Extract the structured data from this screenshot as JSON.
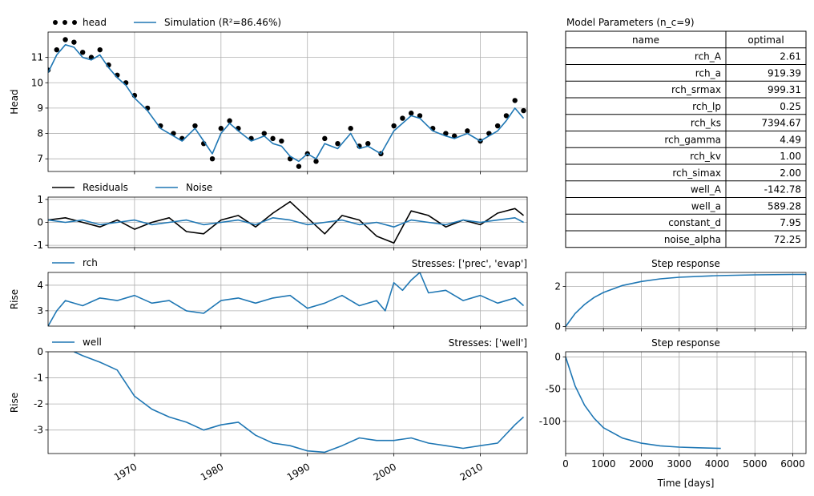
{
  "time_labels": [
    "1970",
    "1980",
    "1990",
    "2000",
    "2010"
  ],
  "chart_data": [
    {
      "type": "line",
      "id": "head_panel",
      "ylabel": "Head",
      "ylim": [
        6.5,
        12.0
      ],
      "xlim": [
        "1960-01-01",
        "2015-06-01"
      ],
      "yticks": [
        7,
        8,
        9,
        10,
        11
      ],
      "grid": true,
      "legend": [
        {
          "label": "head",
          "style": "dots",
          "color": "#000000"
        },
        {
          "label": "Simulation (R²=86.46%)",
          "style": "line",
          "color": "#1f77b4"
        }
      ],
      "series": [
        {
          "name": "head",
          "style": "dots",
          "color": "#000000",
          "x": [
            1960.0,
            1961.0,
            1962.0,
            1963.0,
            1964.0,
            1965.0,
            1966.0,
            1967.0,
            1968.0,
            1969.0,
            1970.0,
            1971.5,
            1973.0,
            1974.5,
            1975.5,
            1977.0,
            1978.0,
            1979.0,
            1980.0,
            1981.0,
            1982.0,
            1983.5,
            1985.0,
            1986.0,
            1987.0,
            1988.0,
            1989.0,
            1990.0,
            1991.0,
            1992.0,
            1993.5,
            1995.0,
            1996.0,
            1997.0,
            1998.5,
            2000.0,
            2001.0,
            2002.0,
            2003.0,
            2004.5,
            2006.0,
            2007.0,
            2008.5,
            2010.0,
            2011.0,
            2012.0,
            2013.0,
            2014.0,
            2015.0
          ],
          "y": [
            10.5,
            11.3,
            11.7,
            11.6,
            11.2,
            11.0,
            11.3,
            10.7,
            10.3,
            10.0,
            9.5,
            9.0,
            8.3,
            8.0,
            7.8,
            8.3,
            7.6,
            7.0,
            8.2,
            8.5,
            8.2,
            7.8,
            8.0,
            7.8,
            7.7,
            7.0,
            6.7,
            7.2,
            6.9,
            7.8,
            7.6,
            8.2,
            7.5,
            7.6,
            7.2,
            8.3,
            8.6,
            8.8,
            8.7,
            8.2,
            8.0,
            7.9,
            8.1,
            7.7,
            8.0,
            8.3,
            8.7,
            9.3,
            8.9
          ]
        },
        {
          "name": "Simulation (R²=86.46%)",
          "style": "line",
          "color": "#1f77b4",
          "x": [
            1960.0,
            1961.0,
            1962.0,
            1963.0,
            1964.0,
            1965.0,
            1966.0,
            1967.0,
            1968.0,
            1969.0,
            1970.0,
            1971.5,
            1973.0,
            1974.5,
            1975.5,
            1977.0,
            1978.0,
            1979.0,
            1980.0,
            1981.0,
            1982.0,
            1983.5,
            1985.0,
            1986.0,
            1987.0,
            1988.0,
            1989.0,
            1990.0,
            1991.0,
            1992.0,
            1993.5,
            1995.0,
            1996.0,
            1997.0,
            1998.5,
            2000.0,
            2001.0,
            2002.0,
            2003.0,
            2004.5,
            2006.0,
            2007.0,
            2008.5,
            2010.0,
            2011.0,
            2012.0,
            2013.0,
            2014.0,
            2015.0
          ],
          "y": [
            10.4,
            11.1,
            11.5,
            11.4,
            11.0,
            10.9,
            11.1,
            10.6,
            10.2,
            9.9,
            9.4,
            8.9,
            8.2,
            7.9,
            7.7,
            8.2,
            7.7,
            7.2,
            8.0,
            8.4,
            8.1,
            7.7,
            7.9,
            7.6,
            7.5,
            7.1,
            6.9,
            7.2,
            7.0,
            7.6,
            7.4,
            8.0,
            7.4,
            7.5,
            7.2,
            8.1,
            8.4,
            8.7,
            8.6,
            8.1,
            7.9,
            7.8,
            8.0,
            7.7,
            7.9,
            8.1,
            8.5,
            9.0,
            8.6
          ]
        }
      ]
    },
    {
      "type": "line",
      "id": "residuals_panel",
      "ylim": [
        -1.1,
        1.1
      ],
      "yticks": [
        -1,
        0,
        1
      ],
      "grid": true,
      "legend": [
        {
          "label": "Residuals",
          "color": "#000000"
        },
        {
          "label": "Noise",
          "color": "#1f77b4"
        }
      ],
      "series": [
        {
          "name": "Residuals",
          "color": "#000000",
          "x": [
            1960,
            1962,
            1964,
            1966,
            1968,
            1970,
            1972,
            1974,
            1976,
            1978,
            1980,
            1982,
            1984,
            1986,
            1988,
            1990,
            1992,
            1994,
            1996,
            1998,
            2000,
            2002,
            2004,
            2006,
            2008,
            2010,
            2012,
            2014,
            2015
          ],
          "y": [
            0.1,
            0.2,
            0.0,
            -0.2,
            0.1,
            -0.3,
            0.0,
            0.2,
            -0.4,
            -0.5,
            0.1,
            0.3,
            -0.2,
            0.4,
            0.9,
            0.2,
            -0.5,
            0.3,
            0.1,
            -0.6,
            -0.9,
            0.5,
            0.3,
            -0.2,
            0.1,
            -0.1,
            0.4,
            0.6,
            0.3
          ]
        },
        {
          "name": "Noise",
          "color": "#1f77b4",
          "x": [
            1960,
            1962,
            1964,
            1966,
            1968,
            1970,
            1972,
            1974,
            1976,
            1978,
            1980,
            1982,
            1984,
            1986,
            1988,
            1990,
            1992,
            1994,
            1996,
            1998,
            2000,
            2002,
            2004,
            2006,
            2008,
            2010,
            2012,
            2014,
            2015
          ],
          "y": [
            0.1,
            0.0,
            0.1,
            -0.1,
            0.0,
            0.1,
            -0.1,
            0.0,
            0.1,
            -0.1,
            0.0,
            0.1,
            -0.1,
            0.2,
            0.1,
            -0.1,
            0.0,
            0.1,
            -0.1,
            0.0,
            -0.2,
            0.1,
            0.0,
            -0.1,
            0.1,
            0.0,
            0.1,
            0.2,
            0.0
          ]
        }
      ]
    },
    {
      "type": "line",
      "id": "rch_panel",
      "ylabel": "Rise",
      "ylim": [
        2.4,
        4.5
      ],
      "yticks": [
        3,
        4
      ],
      "grid": true,
      "title_right": "Stresses: ['prec', 'evap']",
      "legend": [
        {
          "label": "rch",
          "color": "#1f77b4"
        }
      ],
      "series": [
        {
          "name": "rch",
          "color": "#1f77b4",
          "x": [
            1960,
            1961,
            1962,
            1964,
            1966,
            1968,
            1970,
            1972,
            1974,
            1976,
            1978,
            1980,
            1982,
            1984,
            1986,
            1988,
            1990,
            1992,
            1994,
            1996,
            1998,
            1999,
            2000,
            2001,
            2002,
            2003,
            2004,
            2006,
            2008,
            2010,
            2012,
            2014,
            2015
          ],
          "y": [
            2.4,
            3.0,
            3.4,
            3.2,
            3.5,
            3.4,
            3.6,
            3.3,
            3.4,
            3.0,
            2.9,
            3.4,
            3.5,
            3.3,
            3.5,
            3.6,
            3.1,
            3.3,
            3.6,
            3.2,
            3.4,
            3.0,
            4.1,
            3.8,
            4.2,
            4.5,
            3.7,
            3.8,
            3.4,
            3.6,
            3.3,
            3.5,
            3.2
          ]
        }
      ]
    },
    {
      "type": "line",
      "id": "well_panel",
      "ylabel": "Rise",
      "ylim": [
        -3.9,
        0
      ],
      "yticks": [
        -3,
        -2,
        -1,
        0
      ],
      "grid": true,
      "title_right": "Stresses: ['well']",
      "legend": [
        {
          "label": "well",
          "color": "#1f77b4"
        }
      ],
      "series": [
        {
          "name": "well",
          "color": "#1f77b4",
          "x": [
            1963,
            1964,
            1966,
            1968,
            1970,
            1972,
            1974,
            1976,
            1978,
            1980,
            1982,
            1984,
            1986,
            1988,
            1990,
            1992,
            1994,
            1996,
            1998,
            2000,
            2002,
            2004,
            2006,
            2008,
            2010,
            2012,
            2014,
            2015
          ],
          "y": [
            0.0,
            -0.15,
            -0.4,
            -0.7,
            -1.7,
            -2.2,
            -2.5,
            -2.7,
            -3.0,
            -2.8,
            -2.7,
            -3.2,
            -3.5,
            -3.6,
            -3.8,
            -3.85,
            -3.6,
            -3.3,
            -3.4,
            -3.4,
            -3.3,
            -3.5,
            -3.6,
            -3.7,
            -3.6,
            -3.5,
            -2.8,
            -2.5
          ]
        }
      ]
    },
    {
      "type": "line",
      "id": "rch_step",
      "title": "Step response",
      "ylim": [
        -0.1,
        2.7
      ],
      "yticks": [
        0,
        2
      ],
      "xlim": [
        0,
        6350
      ],
      "grid": true,
      "series": [
        {
          "name": "rch step",
          "color": "#1f77b4",
          "x": [
            0,
            250,
            500,
            750,
            1000,
            1500,
            2000,
            2500,
            3000,
            4000,
            5000,
            6000,
            6350
          ],
          "y": [
            0,
            0.65,
            1.1,
            1.45,
            1.7,
            2.05,
            2.25,
            2.38,
            2.46,
            2.54,
            2.58,
            2.6,
            2.6
          ]
        }
      ]
    },
    {
      "type": "line",
      "id": "well_step",
      "title": "Step response",
      "xlabel": "Time [days]",
      "ylim": [
        -150,
        8
      ],
      "yticks": [
        -100,
        -50,
        0
      ],
      "xlim": [
        0,
        6350
      ],
      "xticks": [
        0,
        1000,
        2000,
        3000,
        4000,
        5000,
        6000
      ],
      "grid": true,
      "series": [
        {
          "name": "well step",
          "color": "#1f77b4",
          "x": [
            0,
            250,
            500,
            750,
            1000,
            1500,
            2000,
            2500,
            3000,
            3500,
            4100
          ],
          "y": [
            0,
            -45,
            -75,
            -95,
            -110,
            -126,
            -134,
            -138,
            -140,
            -141,
            -142
          ]
        }
      ]
    },
    {
      "type": "table",
      "id": "params",
      "title": "Model Parameters (n_c=9)",
      "columns": [
        "name",
        "optimal"
      ],
      "rows": [
        [
          "rch_A",
          "2.61"
        ],
        [
          "rch_a",
          "919.39"
        ],
        [
          "rch_srmax",
          "999.31"
        ],
        [
          "rch_lp",
          "0.25"
        ],
        [
          "rch_ks",
          "7394.67"
        ],
        [
          "rch_gamma",
          "4.49"
        ],
        [
          "rch_kv",
          "1.00"
        ],
        [
          "rch_simax",
          "2.00"
        ],
        [
          "well_A",
          "-142.78"
        ],
        [
          "well_a",
          "589.28"
        ],
        [
          "constant_d",
          "7.95"
        ],
        [
          "noise_alpha",
          "72.25"
        ]
      ]
    }
  ]
}
